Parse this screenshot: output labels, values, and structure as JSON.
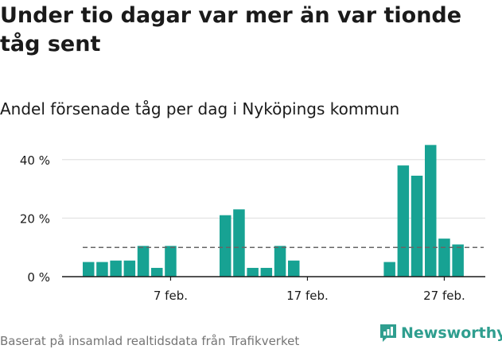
{
  "header": {
    "title": "Under tio dagar var mer än var tionde tåg sent",
    "subtitle": "Andel försenade tåg per dag i Nyköpings kommun"
  },
  "footer": {
    "source": "Baserat på insamlad realtidsdata från Trafikverket",
    "brand": "Newsworthy"
  },
  "colors": {
    "bar": "#17a293",
    "reference_line": "#666666",
    "grid": "#e3e3e3",
    "axis": "#1a1a1a",
    "brand": "#2f9e8f"
  },
  "chart_data": {
    "type": "bar",
    "title": "Andel försenade tåg per dag i Nyköpings kommun",
    "x_start_day": 1,
    "x_month": "feb",
    "values": [
      5,
      5,
      5.5,
      5.5,
      10.5,
      3,
      10.5,
      null,
      null,
      null,
      21,
      23,
      3,
      3,
      10.5,
      5.5,
      null,
      null,
      null,
      null,
      null,
      null,
      5,
      38,
      34.5,
      45,
      13,
      11
    ],
    "reference_value": 10,
    "xticks": [
      {
        "day": 7,
        "label": "7 feb."
      },
      {
        "day": 17,
        "label": "17 feb."
      },
      {
        "day": 27,
        "label": "27 feb."
      }
    ],
    "yticks": [
      {
        "value": 0,
        "label": "0 %"
      },
      {
        "value": 20,
        "label": "20 %"
      },
      {
        "value": 40,
        "label": "40 %"
      }
    ],
    "ylim": [
      0,
      47
    ],
    "grid": true,
    "xlabel": "",
    "ylabel": ""
  }
}
